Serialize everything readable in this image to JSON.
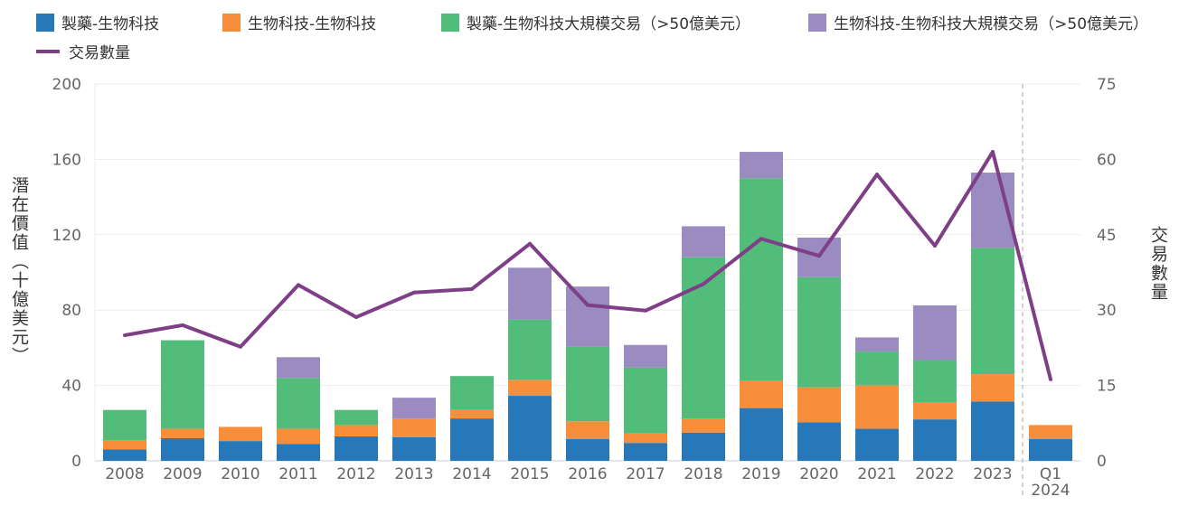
{
  "chart_data": {
    "type": "bar",
    "stacked": true,
    "categories": [
      "2008",
      "2009",
      "2010",
      "2011",
      "2012",
      "2013",
      "2014",
      "2015",
      "2016",
      "2017",
      "2018",
      "2019",
      "2020",
      "2021",
      "2022",
      "2023",
      "Q1 2024"
    ],
    "series": [
      {
        "name": "製藥-生物科技",
        "color": "#2778b8",
        "values": [
          6,
          12,
          10.5,
          9,
          13,
          12.5,
          22.5,
          34.5,
          11.5,
          9.5,
          15,
          28,
          20.5,
          17,
          22,
          31.5,
          11.5
        ]
      },
      {
        "name": "生物科技-生物科技",
        "color": "#f68e3a",
        "values": [
          5,
          5,
          7.5,
          8,
          6,
          10,
          4.5,
          8.5,
          9.5,
          5,
          7.5,
          14.5,
          18.5,
          23,
          9,
          14.5,
          7.5
        ]
      },
      {
        "name": "製藥-生物科技大規模交易（>50億美元）",
        "color": "#52bc7b",
        "values": [
          16,
          47,
          0,
          27,
          8,
          0,
          18,
          32,
          39.5,
          35,
          85.5,
          107.5,
          58.5,
          18,
          22.5,
          67,
          0
        ]
      },
      {
        "name": "生物科技-生物科技大規模交易（>50億美元）",
        "color": "#9a8bc0",
        "values": [
          0,
          0,
          0,
          11,
          0,
          11,
          0,
          27.5,
          32,
          12,
          16.5,
          14,
          21,
          7.5,
          29,
          40,
          0
        ]
      }
    ],
    "line_series": {
      "name": "交易數量",
      "color": "#7f3f86",
      "axis": "right",
      "values": [
        25,
        27,
        22.7,
        35,
        28.6,
        33.5,
        34.2,
        43.2,
        31,
        29.9,
        35.2,
        44.2,
        40.8,
        57,
        42.8,
        61.5,
        16.2
      ]
    },
    "ylabel": "潛在價值（十億美元）",
    "y2label": "交易數量",
    "ylim": [
      0,
      200
    ],
    "y2lim": [
      0,
      75
    ],
    "yticks": [
      "0",
      "40",
      "80",
      "120",
      "160",
      "200"
    ],
    "y2ticks": [
      "0",
      "15",
      "30",
      "45",
      "60",
      "75"
    ],
    "xtick_labels": [
      "2008",
      "2009",
      "2010",
      "2011",
      "2012",
      "2013",
      "2014",
      "2015",
      "2016",
      "2017",
      "2018",
      "2019",
      "2020",
      "2021",
      "2022",
      "2023",
      "Q1",
      "2024"
    ],
    "grid": true,
    "legend_position": "top"
  }
}
